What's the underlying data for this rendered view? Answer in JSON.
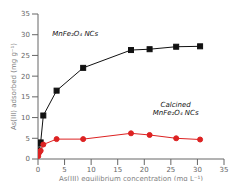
{
  "chart_data": {
    "type": "line",
    "x": [
      0.05,
      0.2,
      0.5,
      1.0,
      3.5,
      8.5,
      17.5,
      21.0,
      26.0,
      30.5
    ],
    "series": [
      {
        "color": "#111111",
        "marker": "square",
        "values": [
          3.8,
          2.0,
          4.0,
          10.5,
          16.5,
          22.0,
          26.3,
          26.5,
          27.1,
          27.2
        ]
      },
      {
        "color": "#dd2222",
        "marker": "circle",
        "values": [
          0.7,
          1.5,
          2.0,
          3.5,
          4.8,
          4.8,
          6.2,
          5.8,
          5.0,
          4.7
        ]
      }
    ],
    "xlabel": "As(III) equilibrium concentration (mg L⁻¹)",
    "ylabel": "As(III) adsorbed (mg g⁻¹)",
    "xlim": [
      0,
      35
    ],
    "ylim": [
      0,
      35
    ],
    "xticks": [
      0,
      5,
      10,
      15,
      20,
      25,
      30,
      35
    ],
    "yticks": [
      0,
      5,
      10,
      15,
      20,
      25,
      30,
      35
    ],
    "grid": false,
    "annotations": [
      "MnFe₂O₄ NCs",
      "Calcined\nMnFe₂O₄ NCs"
    ]
  }
}
